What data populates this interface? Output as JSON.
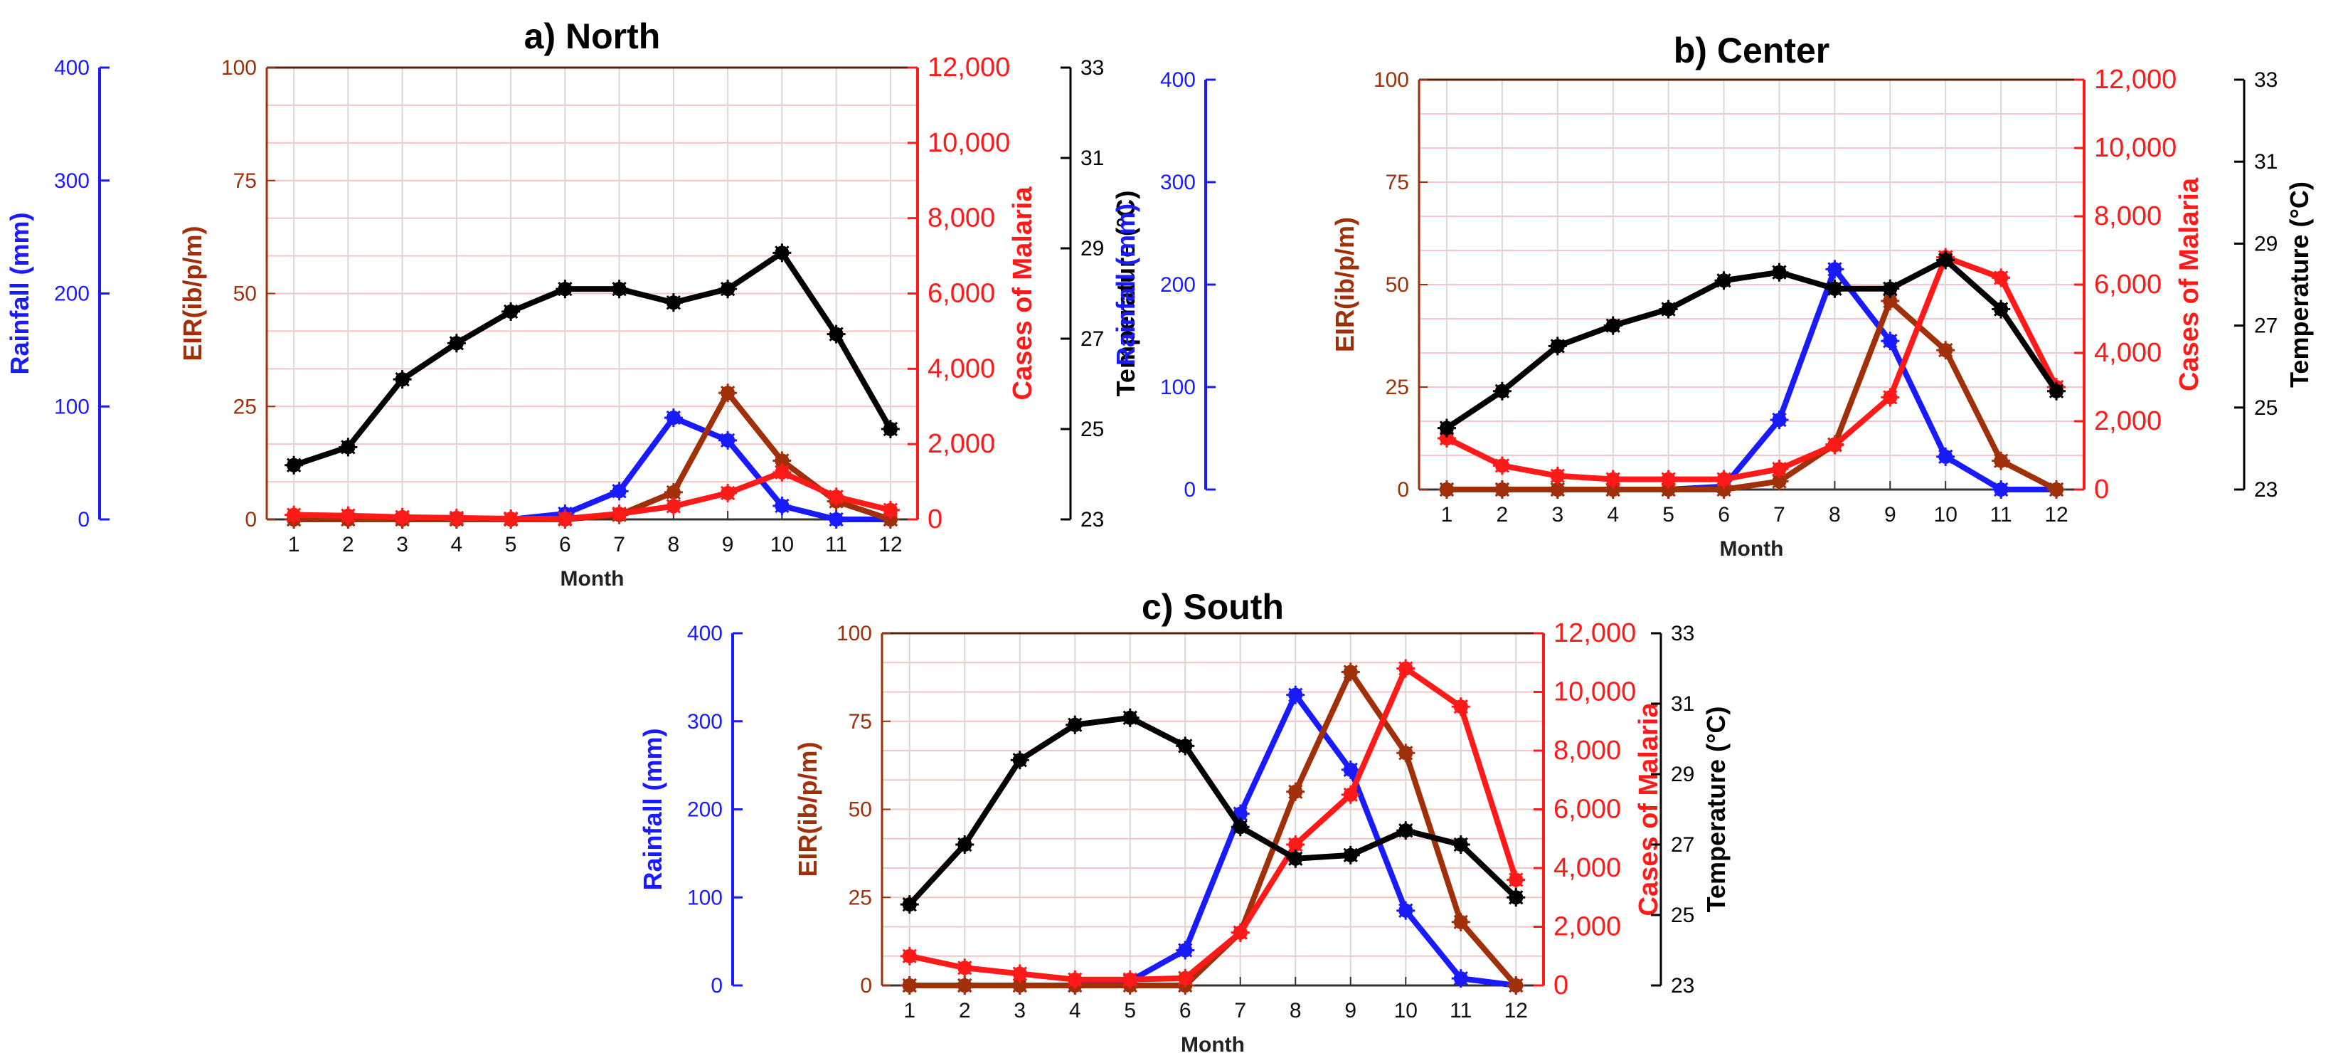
{
  "figure": {
    "panels": [
      {
        "key": "north",
        "title": "a)  North"
      },
      {
        "key": "center",
        "title": "b)  Center"
      },
      {
        "key": "south",
        "title": "c)  South"
      }
    ]
  },
  "axes": {
    "x_label": "Month",
    "x_ticks": [
      "1",
      "2",
      "3",
      "4",
      "5",
      "6",
      "7",
      "8",
      "9",
      "10",
      "11",
      "12"
    ],
    "rainfall": {
      "label": "Rainfall (mm)",
      "ticks": [
        "0",
        "100",
        "200",
        "300",
        "400"
      ],
      "range": [
        0,
        400
      ]
    },
    "eir": {
      "label": "EIR(ib/p/m)",
      "ticks": [
        "0",
        "25",
        "50",
        "75",
        "100"
      ],
      "range": [
        0,
        100
      ]
    },
    "cases": {
      "label": "Cases of Malaria",
      "ticks": [
        "0",
        "2,000",
        "4,000",
        "6,000",
        "8,000",
        "10,000",
        "12,000"
      ],
      "range": [
        0,
        12000
      ]
    },
    "temperature": {
      "label": "Temperature (°C)",
      "ticks": [
        "23",
        "25",
        "27",
        "29",
        "31",
        "33"
      ],
      "range": [
        23,
        33
      ]
    }
  },
  "colors": {
    "rainfall": "#1a1aff",
    "eir": "#a0300a",
    "cases": "#ff1a1a",
    "temperature": "#000000"
  },
  "chart_data": [
    {
      "type": "line",
      "title": "a)  North",
      "xlabel": "Month",
      "x": [
        1,
        2,
        3,
        4,
        5,
        6,
        7,
        8,
        9,
        10,
        11,
        12
      ],
      "series": [
        {
          "name": "Rainfall (mm)",
          "axis": "rainfall",
          "values": [
            0,
            0,
            0,
            0,
            0,
            5,
            25,
            90,
            70,
            12,
            0,
            0
          ]
        },
        {
          "name": "EIR(ib/p/m)",
          "axis": "eir",
          "values": [
            0,
            0,
            0,
            0,
            0,
            0,
            1,
            6,
            28,
            13,
            4,
            0
          ]
        },
        {
          "name": "Cases of Malaria",
          "axis": "cases",
          "values": [
            120,
            100,
            60,
            40,
            20,
            20,
            150,
            350,
            700,
            1250,
            600,
            250
          ]
        },
        {
          "name": "Temperature (°C)",
          "axis": "temperature",
          "values": [
            24.2,
            24.6,
            26.1,
            26.9,
            27.6,
            28.1,
            28.1,
            27.8,
            28.1,
            28.9,
            27.1,
            25
          ]
        }
      ]
    },
    {
      "type": "line",
      "title": "b)  Center",
      "xlabel": "Month",
      "x": [
        1,
        2,
        3,
        4,
        5,
        6,
        7,
        8,
        9,
        10,
        11,
        12
      ],
      "series": [
        {
          "name": "Rainfall (mm)",
          "axis": "rainfall",
          "values": [
            0,
            0,
            0,
            0,
            0,
            3,
            68,
            215,
            145,
            32,
            0,
            0
          ]
        },
        {
          "name": "EIR(ib/p/m)",
          "axis": "eir",
          "values": [
            0,
            0,
            0,
            0,
            0,
            0,
            2,
            11,
            46,
            34,
            7,
            0
          ]
        },
        {
          "name": "Cases of Malaria",
          "axis": "cases",
          "values": [
            1500,
            700,
            400,
            300,
            300,
            300,
            600,
            1300,
            2700,
            6800,
            6200,
            3000
          ]
        },
        {
          "name": "Temperature (°C)",
          "axis": "temperature",
          "values": [
            24.5,
            25.4,
            26.5,
            27,
            27.4,
            28.1,
            28.3,
            27.9,
            27.9,
            28.6,
            27.4,
            25.4
          ]
        }
      ]
    },
    {
      "type": "line",
      "title": "c)  South",
      "xlabel": "Month",
      "x": [
        1,
        2,
        3,
        4,
        5,
        6,
        7,
        8,
        9,
        10,
        11,
        12
      ],
      "series": [
        {
          "name": "Rainfall (mm)",
          "axis": "rainfall",
          "values": [
            0,
            0,
            0,
            0,
            5,
            40,
            195,
            330,
            245,
            85,
            8,
            0
          ]
        },
        {
          "name": "EIR(ib/p/m)",
          "axis": "eir",
          "values": [
            0,
            0,
            0,
            0,
            0,
            0,
            15,
            55,
            89,
            66,
            18,
            0
          ]
        },
        {
          "name": "Cases of Malaria",
          "axis": "cases",
          "values": [
            1000,
            600,
            400,
            200,
            200,
            250,
            1800,
            4800,
            6500,
            10800,
            9500,
            3600
          ]
        },
        {
          "name": "Temperature (°C)",
          "axis": "temperature",
          "values": [
            25.3,
            27,
            29.4,
            30.4,
            30.6,
            29.8,
            27.5,
            26.6,
            26.7,
            27.4,
            27,
            25.5
          ]
        }
      ]
    }
  ]
}
